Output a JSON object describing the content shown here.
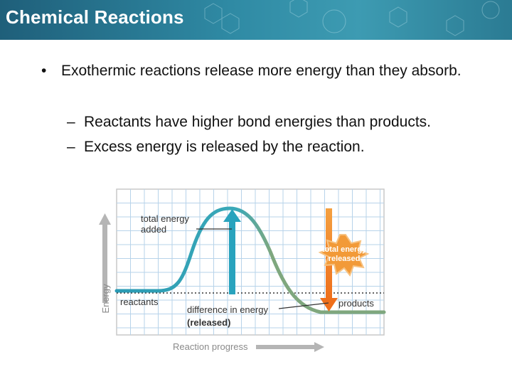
{
  "slide": {
    "title": "Chemical Reactions",
    "bullet": "Exothermic reactions release more energy than they absorb.",
    "bullet_marker": "•",
    "sub_marker": "–",
    "sub_bullets": [
      "Reactants have higher bond energies than products.",
      "Excess energy is released by the reaction."
    ]
  },
  "diagram": {
    "y_axis_label": "Energy",
    "x_axis_label": "Reaction progress",
    "label_total_added_1": "total energy",
    "label_total_added_2": "added",
    "label_released_1": "total energy",
    "label_released_2": "released",
    "label_reactants": "reactants",
    "label_products": "products",
    "label_difference_1": "difference in energy",
    "label_difference_2": "(released)",
    "colors": {
      "curve_rising": "#2a9bb5",
      "curve_falling": "#7fa77e",
      "arrow_added": "#29a3bd",
      "arrow_released": "#f07a22",
      "burst": "#f29a38",
      "grid": "#b7d3ea",
      "axis_arrow": "#b5b5b5"
    }
  }
}
